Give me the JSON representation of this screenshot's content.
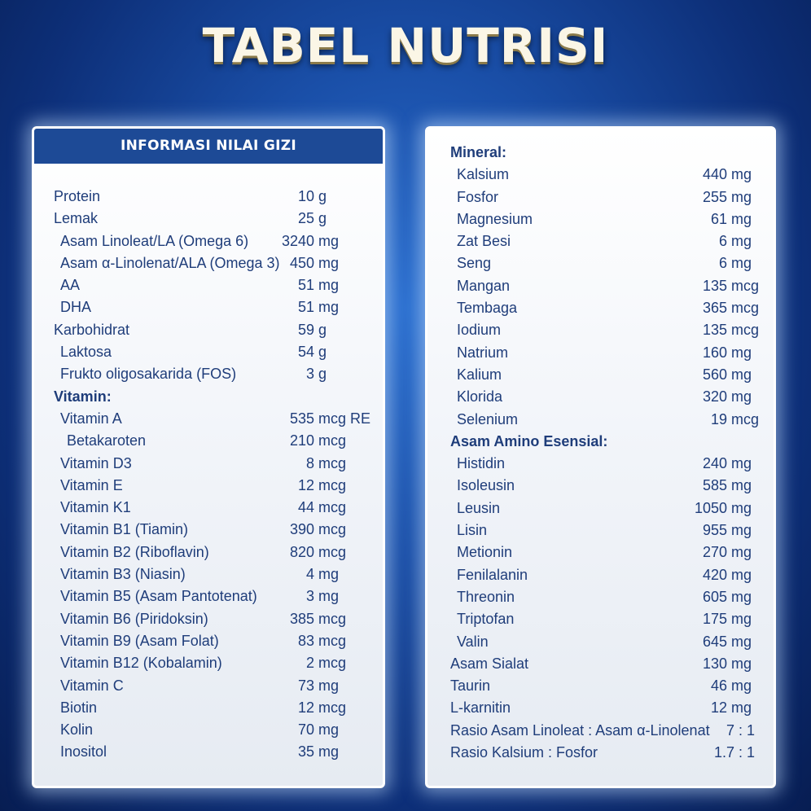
{
  "title": "TABEL NUTRISI",
  "left_panel": {
    "header": "INFORMASI NILAI GIZI",
    "rows": [
      {
        "name": "Protein",
        "value": "10",
        "unit": "g",
        "level": 0
      },
      {
        "name": "Lemak",
        "value": "25",
        "unit": "g",
        "level": 0
      },
      {
        "name": "Asam Linoleat/LA (Omega 6)",
        "value": "3240",
        "unit": "mg",
        "level": 1
      },
      {
        "name": "Asam α-Linolenat/ALA (Omega 3)",
        "value": "450",
        "unit": "mg",
        "level": 1
      },
      {
        "name": "AA",
        "value": "51",
        "unit": "mg",
        "level": 1
      },
      {
        "name": "DHA",
        "value": "51",
        "unit": "mg",
        "level": 1
      },
      {
        "name": "Karbohidrat",
        "value": "59",
        "unit": "g",
        "level": 0
      },
      {
        "name": "Laktosa",
        "value": "54",
        "unit": "g",
        "level": 1
      },
      {
        "name": "Frukto oligosakarida (FOS)",
        "value": "3",
        "unit": "g",
        "level": 1
      },
      {
        "name": "Vitamin:",
        "value": "",
        "unit": "",
        "level": 0,
        "section": true
      },
      {
        "name": "Vitamin A",
        "value": "535",
        "unit": "mcg RE",
        "level": 1
      },
      {
        "name": "Betakaroten",
        "value": "210",
        "unit": "mcg",
        "level": 2
      },
      {
        "name": "Vitamin D3",
        "value": "8",
        "unit": "mcg",
        "level": 1
      },
      {
        "name": "Vitamin E",
        "value": "12",
        "unit": "mcg",
        "level": 1
      },
      {
        "name": "Vitamin K1",
        "value": "44",
        "unit": "mcg",
        "level": 1
      },
      {
        "name": "Vitamin B1 (Tiamin)",
        "value": "390",
        "unit": "mcg",
        "level": 1
      },
      {
        "name": "Vitamin B2 (Riboflavin)",
        "value": "820",
        "unit": "mcg",
        "level": 1
      },
      {
        "name": "Vitamin B3 (Niasin)",
        "value": "4",
        "unit": "mg",
        "level": 1
      },
      {
        "name": "Vitamin B5 (Asam Pantotenat)",
        "value": "3",
        "unit": "mg",
        "level": 1
      },
      {
        "name": "Vitamin B6 (Piridoksin)",
        "value": "385",
        "unit": "mcg",
        "level": 1
      },
      {
        "name": "Vitamin B9 (Asam Folat)",
        "value": "83",
        "unit": "mcg",
        "level": 1
      },
      {
        "name": "Vitamin B12 (Kobalamin)",
        "value": "2",
        "unit": "mcg",
        "level": 1
      },
      {
        "name": "Vitamin C",
        "value": "73",
        "unit": "mg",
        "level": 1
      },
      {
        "name": "Biotin",
        "value": "12",
        "unit": "mcg",
        "level": 1
      },
      {
        "name": "Kolin",
        "value": "70",
        "unit": "mg",
        "level": 1
      },
      {
        "name": "Inositol",
        "value": "35",
        "unit": "mg",
        "level": 1
      }
    ]
  },
  "right_panel": {
    "rows": [
      {
        "name": "Mineral:",
        "value": "",
        "unit": "",
        "level": 0,
        "section": true
      },
      {
        "name": "Kalsium",
        "value": "440",
        "unit": "mg",
        "level": 1
      },
      {
        "name": "Fosfor",
        "value": "255",
        "unit": "mg",
        "level": 1
      },
      {
        "name": "Magnesium",
        "value": "61",
        "unit": "mg",
        "level": 1
      },
      {
        "name": "Zat Besi",
        "value": "6",
        "unit": "mg",
        "level": 1
      },
      {
        "name": "Seng",
        "value": "6",
        "unit": "mg",
        "level": 1
      },
      {
        "name": "Mangan",
        "value": "135",
        "unit": "mcg",
        "level": 1
      },
      {
        "name": "Tembaga",
        "value": "365",
        "unit": "mcg",
        "level": 1
      },
      {
        "name": "Iodium",
        "value": "135",
        "unit": "mcg",
        "level": 1
      },
      {
        "name": "Natrium",
        "value": "160",
        "unit": "mg",
        "level": 1
      },
      {
        "name": "Kalium",
        "value": "560",
        "unit": "mg",
        "level": 1
      },
      {
        "name": "Klorida",
        "value": "320",
        "unit": "mg",
        "level": 1
      },
      {
        "name": "Selenium",
        "value": "19",
        "unit": "mcg",
        "level": 1
      },
      {
        "name": "Asam Amino Esensial:",
        "value": "",
        "unit": "",
        "level": 0,
        "section": true
      },
      {
        "name": "Histidin",
        "value": "240",
        "unit": "mg",
        "level": 1
      },
      {
        "name": "Isoleusin",
        "value": "585",
        "unit": "mg",
        "level": 1
      },
      {
        "name": "Leusin",
        "value": "1050",
        "unit": "mg",
        "level": 1
      },
      {
        "name": "Lisin",
        "value": "955",
        "unit": "mg",
        "level": 1
      },
      {
        "name": "Metionin",
        "value": "270",
        "unit": "mg",
        "level": 1
      },
      {
        "name": "Fenilalanin",
        "value": "420",
        "unit": "mg",
        "level": 1
      },
      {
        "name": "Threonin",
        "value": "605",
        "unit": "mg",
        "level": 1
      },
      {
        "name": "Triptofan",
        "value": "175",
        "unit": "mg",
        "level": 1
      },
      {
        "name": "Valin",
        "value": "645",
        "unit": "mg",
        "level": 1
      },
      {
        "name": "Asam Sialat",
        "value": "130",
        "unit": "mg",
        "level": 0
      },
      {
        "name": "Taurin",
        "value": "46",
        "unit": "mg",
        "level": 0
      },
      {
        "name": "L-karnitin",
        "value": "12",
        "unit": "mg",
        "level": 0
      },
      {
        "name": "Rasio Asam Linoleat : Asam α-Linolenat",
        "ratio": "7 : 1",
        "level": 0
      },
      {
        "name": "Rasio Kalsium : Fosfor",
        "ratio": "1.7 : 1",
        "level": 0
      }
    ]
  }
}
